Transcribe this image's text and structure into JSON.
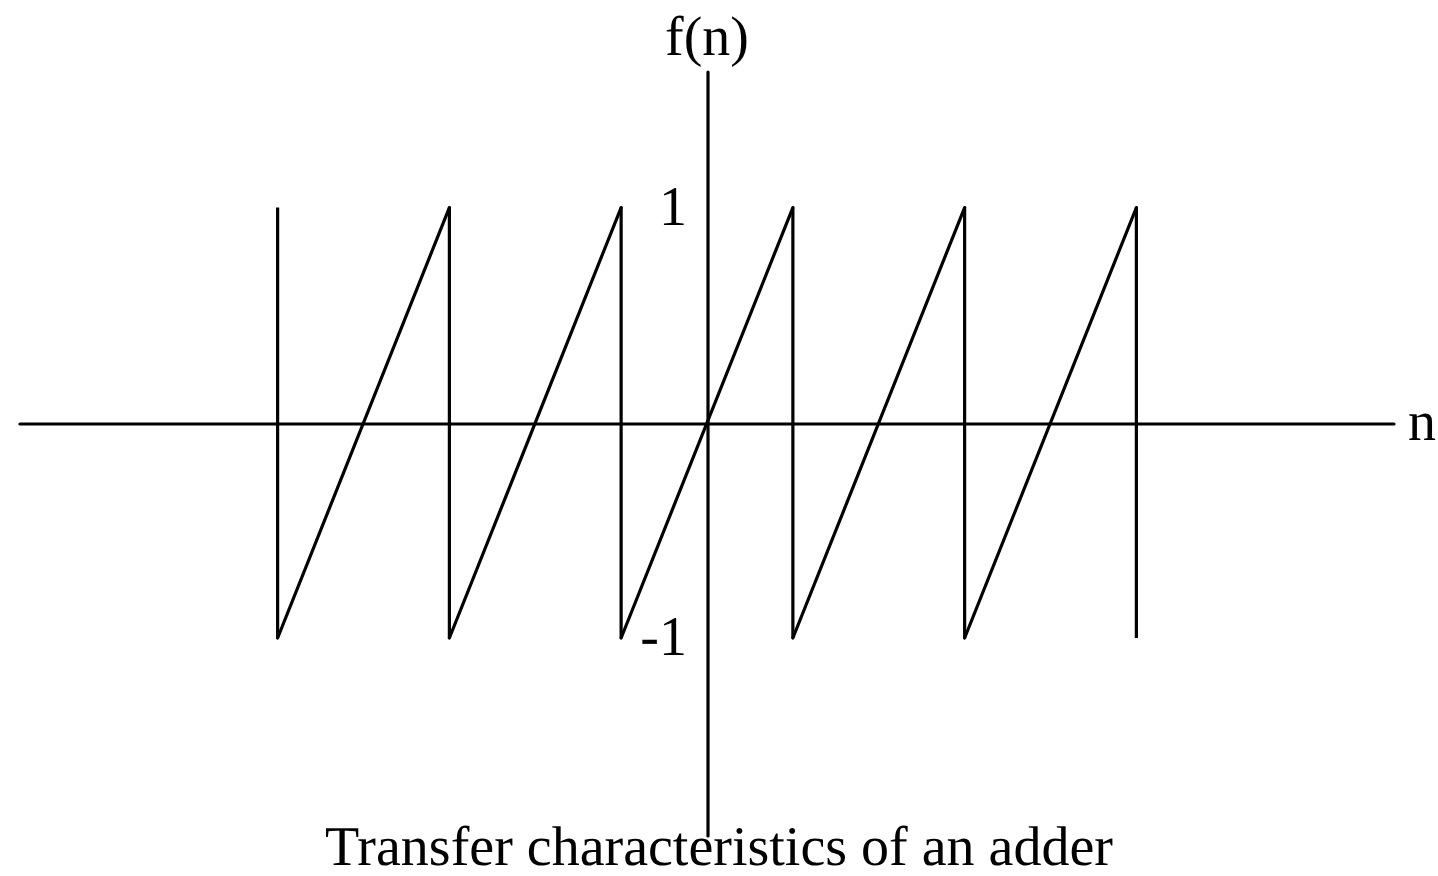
{
  "chart_data": {
    "type": "line",
    "title": "Transfer characteristics of an adder",
    "xlabel": "n",
    "ylabel": "f(n)",
    "categories": [
      null,
      null,
      null,
      null,
      null,
      null,
      null,
      null
    ],
    "series": [
      {
        "type": "bar",
        "color": "#000000",
        "base": [
          null,
          -1,
          -1,
          -1,
          -1,
          -1,
          -1,
          null
        ],
        "values": [
          null,
          2,
          2,
          2,
          2,
          2,
          2,
          null
        ]
      },
      {
        "color": "#000000",
        "values": [
          null,
          -1,
          1,
          null,
          null,
          null,
          null,
          null
        ]
      },
      {
        "color": "#000000",
        "values": [
          null,
          null,
          -1,
          1,
          null,
          null,
          null,
          null
        ]
      },
      {
        "color": "#000000",
        "values": [
          null,
          null,
          null,
          -1,
          1,
          null,
          null,
          null
        ]
      },
      {
        "color": "#000000",
        "values": [
          null,
          null,
          null,
          null,
          -1,
          1,
          null,
          null
        ]
      },
      {
        "color": "#000000",
        "values": [
          null,
          null,
          null,
          null,
          null,
          -1,
          1,
          null
        ]
      }
    ],
    "line_style": "solid",
    "ylim": [
      -1.92,
      1.63
    ],
    "yticks": [
      -1,
      1
    ],
    "tick_labels": "y"
  }
}
